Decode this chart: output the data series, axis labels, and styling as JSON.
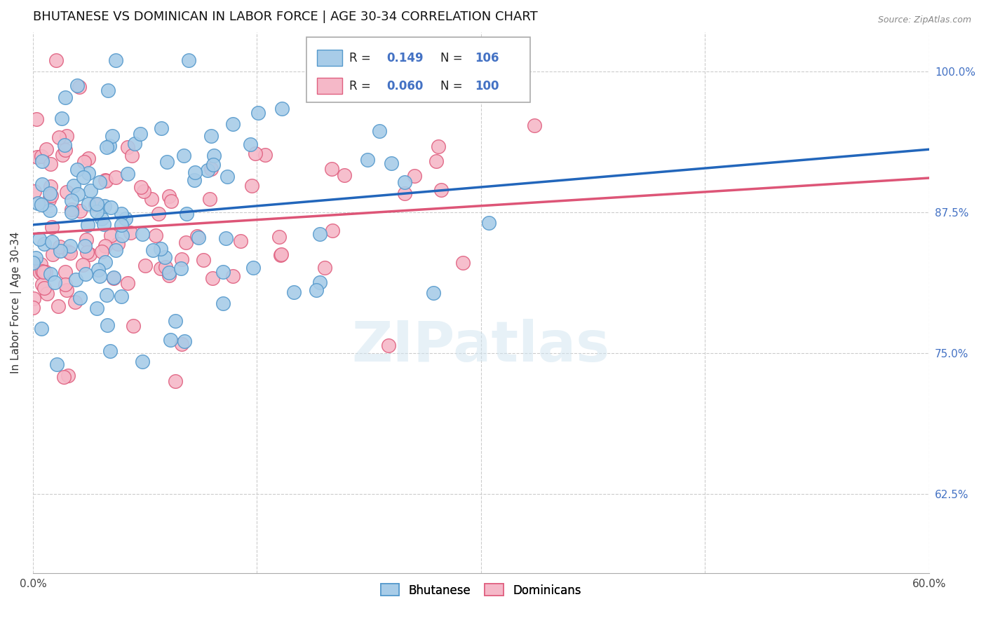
{
  "title": "BHUTANESE VS DOMINICAN IN LABOR FORCE | AGE 30-34 CORRELATION CHART",
  "source": "Source: ZipAtlas.com",
  "ylabel": "In Labor Force | Age 30-34",
  "ytick_labels": [
    "100.0%",
    "87.5%",
    "75.0%",
    "62.5%"
  ],
  "ytick_values": [
    1.0,
    0.875,
    0.75,
    0.625
  ],
  "xlim": [
    0.0,
    0.6
  ],
  "ylim": [
    0.555,
    1.035
  ],
  "blue_R": 0.149,
  "blue_N": 106,
  "pink_R": 0.06,
  "pink_N": 100,
  "blue_color": "#a8cce8",
  "pink_color": "#f5b8c8",
  "blue_edge_color": "#5599cc",
  "pink_edge_color": "#e06080",
  "blue_line_color": "#2266bb",
  "pink_line_color": "#dd5577",
  "legend_label_blue": "Bhutanese",
  "legend_label_pink": "Dominicans",
  "watermark": "ZIPatlas",
  "title_fontsize": 13,
  "axis_label_fontsize": 11,
  "tick_fontsize": 11
}
